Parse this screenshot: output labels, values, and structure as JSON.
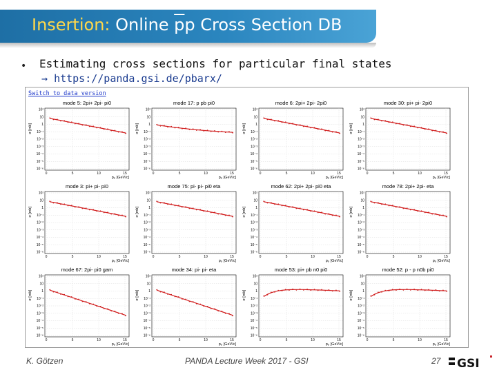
{
  "slide": {
    "title_prefix": "Insertion:",
    "title_main": "Online ",
    "title_pbar": "p",
    "title_p": "p",
    "title_suffix": " Cross Section DB",
    "bullet": "Estimating cross sections for particular final states",
    "url_arrow": "→",
    "url": "https://panda.gsi.de/pbarx/"
  },
  "screenshot": {
    "switch_link": "Switch to data version",
    "y_axis_label": "σ [mb]",
    "x_axis_label": "pₚ [GeV/c]",
    "y_ticks": [
      "10²",
      "10",
      "1",
      "10⁻¹",
      "10⁻²",
      "10⁻³",
      "10⁻⁴",
      "10⁻⁵",
      "10⁻⁶"
    ],
    "x_ticks": [
      "5",
      "10",
      "15"
    ],
    "x_start_tick": "0",
    "panels": [
      {
        "mode": "mode 5: 2pi+ 2pi- pi0",
        "shape": "decay"
      },
      {
        "mode": "mode 17: p pb pi0",
        "shape": "peak"
      },
      {
        "mode": "mode 6: 2pi+ 2pi- 2pi0",
        "shape": "decay"
      },
      {
        "mode": "mode 30: pi+ pi- 2pi0",
        "shape": "decay"
      },
      {
        "mode": "mode 3: pi+ pi- pi0",
        "shape": "decay"
      },
      {
        "mode": "mode 75: pi- pi- pi0 eta",
        "shape": "decay"
      },
      {
        "mode": "mode 62: 2pi+ 2pi- pi0 eta",
        "shape": "decay"
      },
      {
        "mode": "mode 78: 2pi+ 2pi- eta",
        "shape": "decay"
      },
      {
        "mode": "mode 67: 2pi- pi0 gam",
        "shape": "decay_steep"
      },
      {
        "mode": "mode 34: pi- pi- eta",
        "shape": "decay_steep"
      },
      {
        "mode": "mode 53: pi+ pb n0 pi0",
        "shape": "rise"
      },
      {
        "mode": "mode 52: p - p n0b pi0",
        "shape": "rise"
      }
    ]
  },
  "footer": {
    "author": "K. Götzen",
    "event": "PANDA Lecture Week 2017 - GSI",
    "page": "27",
    "logo_text": "GSI"
  }
}
